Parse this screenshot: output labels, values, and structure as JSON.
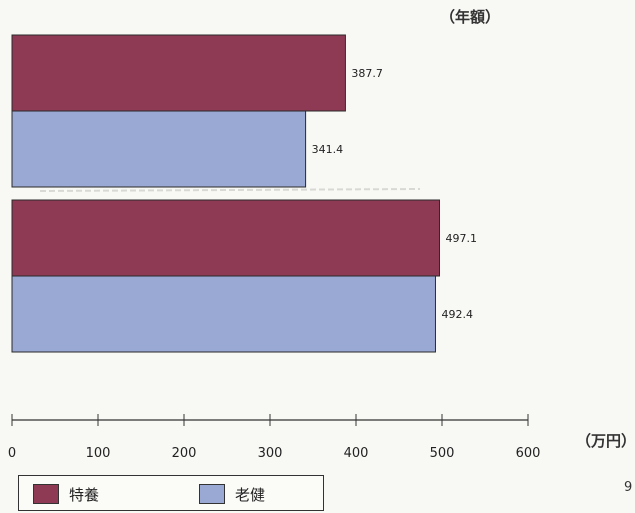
{
  "chart_data": {
    "type": "bar",
    "orientation": "horizontal",
    "unit_top": "（年額）",
    "xlabel": "（万円）",
    "xlim": [
      0,
      600
    ],
    "xticks": [
      0,
      100,
      200,
      300,
      400,
      500,
      600
    ],
    "groups": [
      {
        "bars": [
          {
            "series": "特養",
            "value": 387.7,
            "label": "387.7"
          },
          {
            "series": "老健",
            "value": 341.4,
            "label": "341.4"
          }
        ]
      },
      {
        "bars": [
          {
            "series": "特養",
            "value": 497.1,
            "label": "497.1"
          },
          {
            "series": "老健",
            "value": 492.4,
            "label": "492.4"
          }
        ]
      }
    ],
    "series": [
      {
        "name": "特養",
        "color": "#8f3a55"
      },
      {
        "name": "老健",
        "color": "#9aa8d4"
      }
    ],
    "legend_position": "bottom-left"
  },
  "page_number": "9"
}
